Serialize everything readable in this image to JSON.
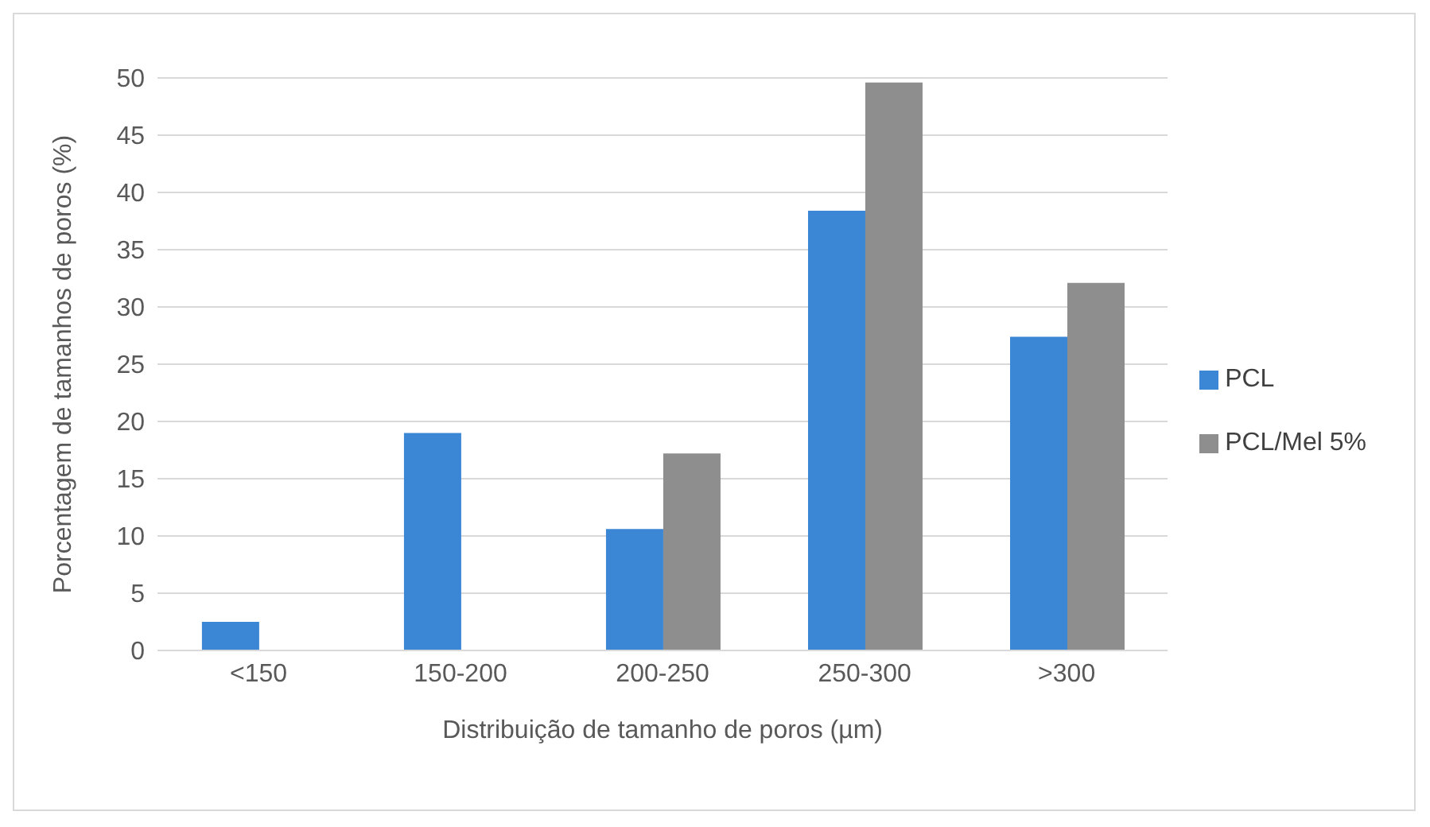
{
  "chart_data": {
    "type": "bar",
    "xlabel": "Distribuição de tamanho de poros (µm)",
    "ylabel": "Porcentagem de tamanhos de poros (%)",
    "categories": [
      "<150",
      "150-200",
      "200-250",
      "250-300",
      ">300"
    ],
    "series": [
      {
        "name": "PCL",
        "color": "#3b87d6",
        "values": [
          2.5,
          19,
          10.6,
          38.4,
          27.4
        ]
      },
      {
        "name": "PCL/Mel 5%",
        "color": "#8e8e8e",
        "values": [
          0,
          0,
          17.2,
          49.6,
          32.1
        ]
      }
    ],
    "ylim": [
      0,
      50
    ],
    "yticks": [
      0,
      5,
      10,
      15,
      20,
      25,
      30,
      35,
      40,
      45,
      50
    ],
    "grid": "y",
    "legend": "right"
  }
}
